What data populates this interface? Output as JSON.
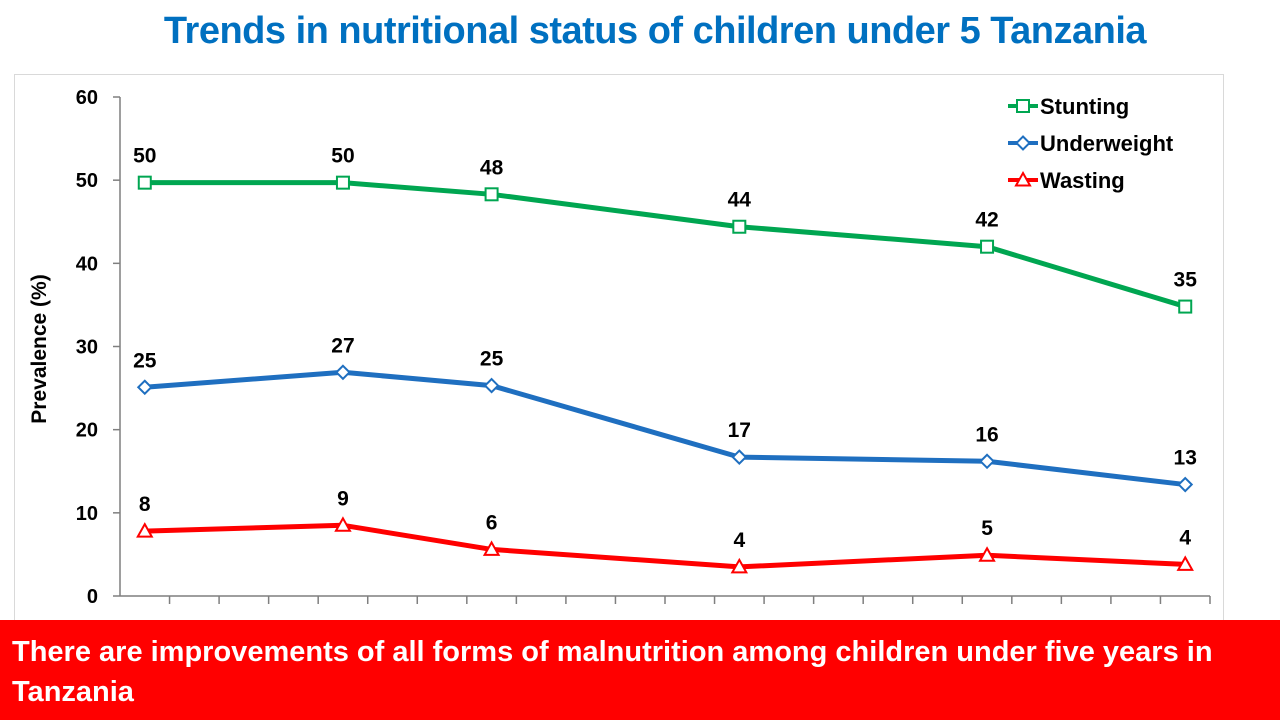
{
  "colors": {
    "title": "#0070C0",
    "banner_bg": "#FF0000",
    "stunting": "#00A651",
    "underweight": "#1F6FC0",
    "wasting": "#FF0000"
  },
  "slide": {
    "title": "Trends in nutritional status of children under 5 Tanzania",
    "banner_text": "There are improvements of all forms of malnutrition among children under five years in Tanzania"
  },
  "chart_data": {
    "type": "line",
    "title": "",
    "xlabel": "",
    "ylabel": "Prevalence (%)",
    "ylim": [
      0,
      60
    ],
    "yticks": [
      0,
      10,
      20,
      30,
      40,
      50,
      60
    ],
    "x_category_index": [
      0,
      4,
      7,
      12,
      17,
      21
    ],
    "x_category_count": 22,
    "grid": false,
    "legend_position": "top-right",
    "series": [
      {
        "name": "Stunting",
        "marker": "square",
        "color_key": "stunting",
        "values": [
          49.7,
          49.7,
          48.3,
          44.4,
          42.0,
          34.8
        ],
        "labels": [
          "50",
          "50",
          "48",
          "44",
          "42",
          "35"
        ]
      },
      {
        "name": "Underweight",
        "marker": "diamond",
        "color_key": "underweight",
        "values": [
          25.1,
          26.9,
          25.3,
          16.7,
          16.2,
          13.4
        ],
        "labels": [
          "25",
          "27",
          "25",
          "17",
          "16",
          "13"
        ]
      },
      {
        "name": "Wasting",
        "marker": "triangle",
        "color_key": "wasting",
        "values": [
          7.8,
          8.5,
          5.6,
          3.5,
          4.9,
          3.8
        ],
        "labels": [
          "8",
          "9",
          "6",
          "4",
          "5",
          "4"
        ]
      }
    ]
  }
}
